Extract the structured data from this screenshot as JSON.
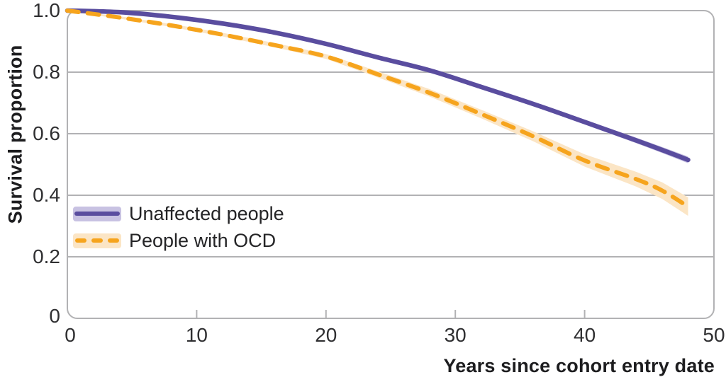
{
  "chart_data": {
    "type": "line",
    "xlabel": "Years since cohort entry date",
    "ylabel": "Survival proportion",
    "xlim": [
      0,
      50
    ],
    "ylim": [
      0,
      1.0
    ],
    "x_ticks": [
      0,
      10,
      20,
      30,
      40,
      50
    ],
    "x_tick_labels": [
      "0",
      "10",
      "20",
      "30",
      "40",
      "50"
    ],
    "y_ticks": [
      1.0,
      0.8,
      0.6,
      0.4,
      0.2,
      0
    ],
    "y_tick_labels": [
      "1.0",
      "0.8",
      "0.6",
      "0.4",
      "0.2",
      "0"
    ],
    "grid": "horizontal-only",
    "legend_position": "inside-left-middle",
    "x": [
      0,
      4,
      8,
      12,
      16,
      20,
      24,
      28,
      32,
      36,
      40,
      44,
      46,
      48
    ],
    "series": [
      {
        "name": "Unaffected people",
        "style": "solid",
        "color": "#5a4d9f",
        "band_color": "#c8c2e2",
        "values": [
          1.0,
          0.995,
          0.98,
          0.958,
          0.929,
          0.892,
          0.848,
          0.806,
          0.752,
          0.697,
          0.638,
          0.578,
          0.547,
          0.515
        ],
        "band_halfwidth": [
          0.002,
          0.003,
          0.003,
          0.004,
          0.004,
          0.005,
          0.005,
          0.006,
          0.006,
          0.007,
          0.008,
          0.009,
          0.01,
          0.011
        ]
      },
      {
        "name": "People with OCD",
        "style": "dashed",
        "color": "#f6a41d",
        "band_color": "#fbe5c5",
        "values": [
          1.0,
          0.978,
          0.952,
          0.922,
          0.888,
          0.851,
          0.793,
          0.733,
          0.664,
          0.592,
          0.513,
          0.452,
          0.415,
          0.363
        ],
        "band_halfwidth": [
          0.002,
          0.004,
          0.005,
          0.006,
          0.007,
          0.008,
          0.01,
          0.012,
          0.014,
          0.016,
          0.02,
          0.024,
          0.027,
          0.03
        ]
      }
    ]
  },
  "colors": {
    "grid": "#b2b2b4",
    "frame": "#b2b2b4",
    "tick_text": "#2f2f31",
    "axis_label_text": "#1d1d1f"
  }
}
